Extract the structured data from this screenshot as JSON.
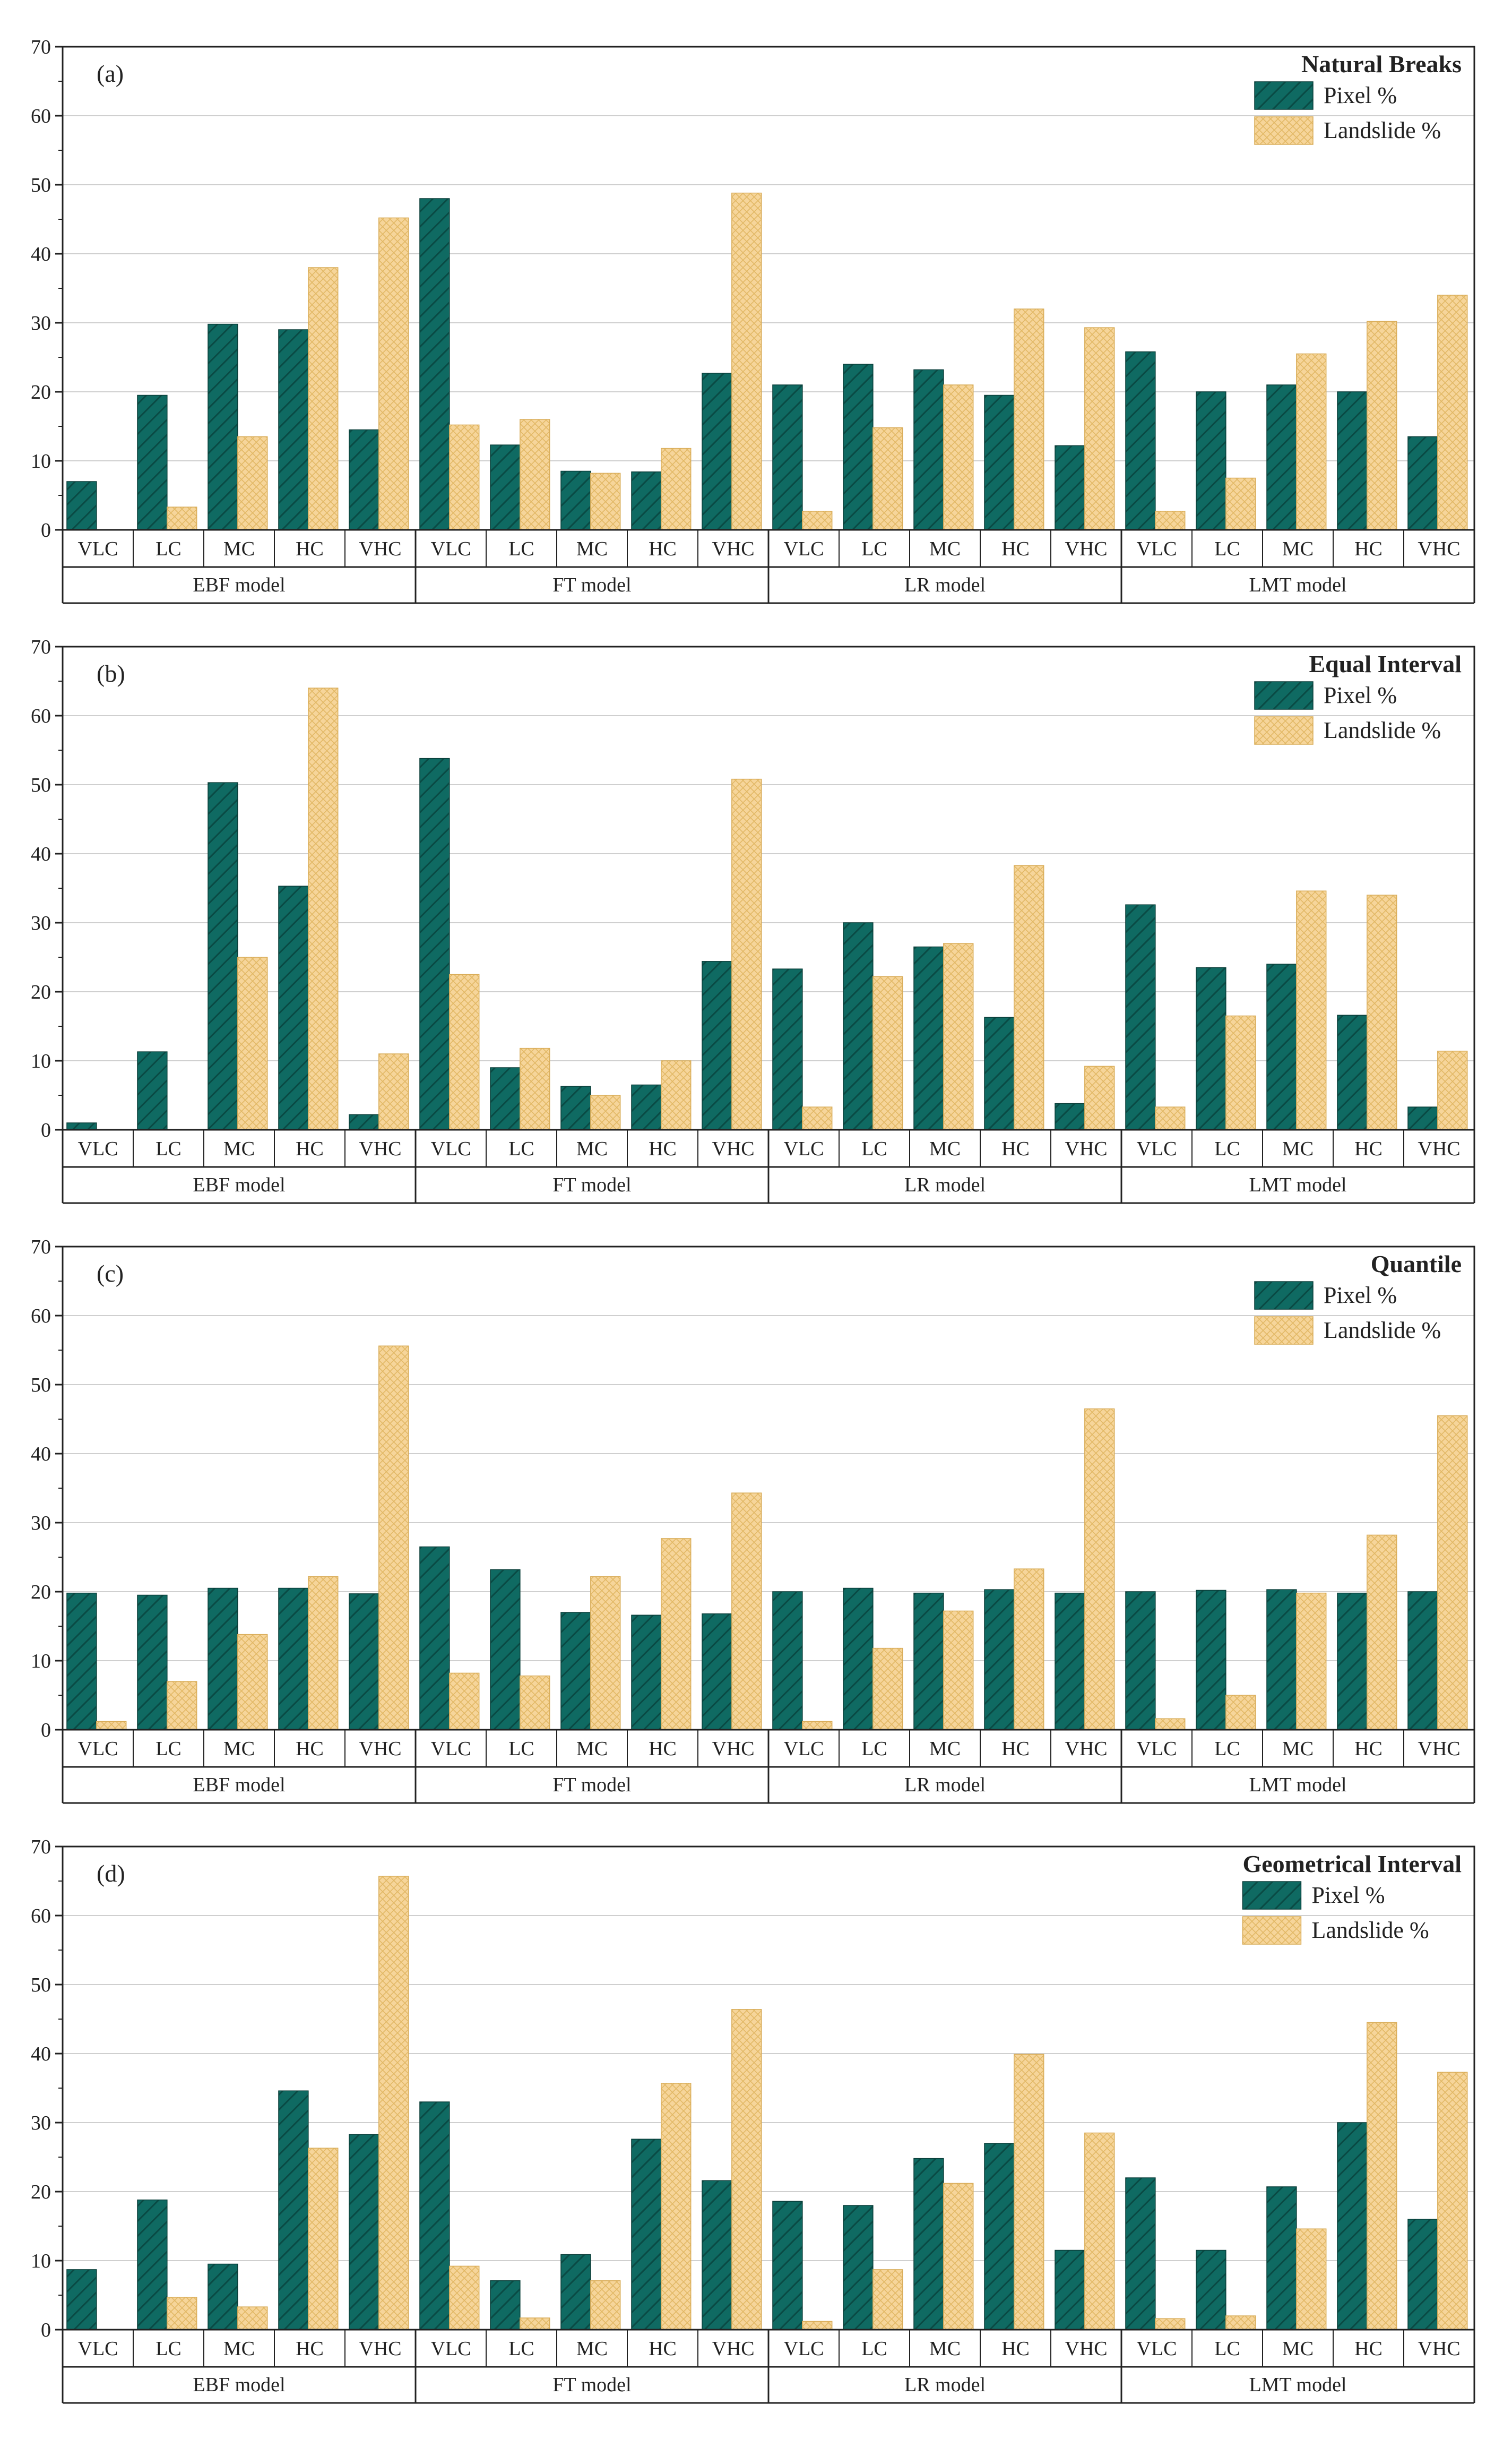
{
  "colors": {
    "pixel": "#0f6a62",
    "pixel_hatch": "#0a4a44",
    "landslide": "#f6d59a",
    "landslide_hatch": "#e2b865",
    "axis": "#222222",
    "grid": "#cfcfcf"
  },
  "legend": {
    "pixel_label": "Pixel %",
    "landslide_label": "Landslide %"
  },
  "chart_data": [
    {
      "type": "bar",
      "panel_label": "(a)",
      "title": "Natural Breaks",
      "ylim": [
        0,
        70
      ],
      "yticks": [
        0,
        10,
        20,
        30,
        40,
        50,
        60,
        70
      ],
      "categories": [
        "VLC",
        "LC",
        "MC",
        "HC",
        "VHC"
      ],
      "groups": [
        "EBF model",
        "FT model",
        "LR model",
        "LMT model"
      ],
      "series": [
        {
          "name": "Pixel %",
          "values": [
            [
              7,
              19.5,
              29.8,
              29,
              14.5
            ],
            [
              48,
              12.3,
              8.5,
              8.4,
              22.7
            ],
            [
              21,
              24,
              23.2,
              19.5,
              12.2
            ],
            [
              25.8,
              20,
              21,
              20,
              13.5
            ]
          ]
        },
        {
          "name": "Landslide %",
          "values": [
            [
              0,
              3.3,
              13.5,
              38,
              45.2
            ],
            [
              15.2,
              16,
              8.2,
              11.8,
              48.8
            ],
            [
              2.7,
              14.8,
              21,
              32,
              29.3
            ],
            [
              2.7,
              7.5,
              25.5,
              30.2,
              34
            ]
          ]
        }
      ]
    },
    {
      "type": "bar",
      "panel_label": "(b)",
      "title": "Equal Interval",
      "ylim": [
        0,
        70
      ],
      "yticks": [
        0,
        10,
        20,
        30,
        40,
        50,
        60,
        70
      ],
      "categories": [
        "VLC",
        "LC",
        "MC",
        "HC",
        "VHC"
      ],
      "groups": [
        "EBF model",
        "FT model",
        "LR model",
        "LMT model"
      ],
      "series": [
        {
          "name": "Pixel %",
          "values": [
            [
              1,
              11.3,
              50.3,
              35.3,
              2.2
            ],
            [
              53.8,
              9,
              6.3,
              6.5,
              24.4
            ],
            [
              23.3,
              30,
              26.5,
              16.3,
              3.8
            ],
            [
              32.6,
              23.5,
              24,
              16.6,
              3.3
            ]
          ]
        },
        {
          "name": "Landslide %",
          "values": [
            [
              0,
              0,
              25,
              64,
              11
            ],
            [
              22.5,
              11.8,
              5,
              10,
              50.8
            ],
            [
              3.3,
              22.2,
              27,
              38.3,
              9.2
            ],
            [
              3.3,
              16.5,
              34.6,
              34,
              11.4
            ]
          ]
        }
      ]
    },
    {
      "type": "bar",
      "panel_label": "(c)",
      "title": "Quantile",
      "ylim": [
        0,
        70
      ],
      "yticks": [
        0,
        10,
        20,
        30,
        40,
        50,
        60,
        70
      ],
      "categories": [
        "VLC",
        "LC",
        "MC",
        "HC",
        "VHC"
      ],
      "groups": [
        "EBF model",
        "FT model",
        "LR model",
        "LMT model"
      ],
      "series": [
        {
          "name": "Pixel %",
          "values": [
            [
              19.8,
              19.5,
              20.5,
              20.5,
              19.7
            ],
            [
              26.5,
              23.2,
              17,
              16.6,
              16.8
            ],
            [
              20,
              20.5,
              19.8,
              20.3,
              19.8
            ],
            [
              20,
              20.2,
              20.3,
              19.8,
              20
            ]
          ]
        },
        {
          "name": "Landslide %",
          "values": [
            [
              1.2,
              7,
              13.8,
              22.2,
              55.6
            ],
            [
              8.2,
              7.8,
              22.2,
              27.7,
              34.3
            ],
            [
              1.2,
              11.8,
              17.2,
              23.3,
              46.5
            ],
            [
              1.6,
              5,
              19.8,
              28.2,
              45.5
            ]
          ]
        }
      ]
    },
    {
      "type": "bar",
      "panel_label": "(d)",
      "title": "Geometrical Interval",
      "ylim": [
        0,
        70
      ],
      "yticks": [
        0,
        10,
        20,
        30,
        40,
        50,
        60,
        70
      ],
      "categories": [
        "VLC",
        "LC",
        "MC",
        "HC",
        "VHC"
      ],
      "groups": [
        "EBF model",
        "FT model",
        "LR model",
        "LMT model"
      ],
      "series": [
        {
          "name": "Pixel %",
          "values": [
            [
              8.7,
              18.8,
              9.5,
              34.6,
              28.3
            ],
            [
              33,
              7.1,
              10.9,
              27.6,
              21.6
            ],
            [
              18.6,
              18,
              24.8,
              27,
              11.5
            ],
            [
              22,
              11.5,
              20.7,
              30,
              16
            ]
          ]
        },
        {
          "name": "Landslide %",
          "values": [
            [
              0,
              4.7,
              3.3,
              26.3,
              65.7
            ],
            [
              9.2,
              1.7,
              7.1,
              35.7,
              46.4
            ],
            [
              1.2,
              8.7,
              21.2,
              39.9,
              28.5
            ],
            [
              1.6,
              2,
              14.6,
              44.5,
              37.3
            ]
          ]
        }
      ]
    }
  ]
}
